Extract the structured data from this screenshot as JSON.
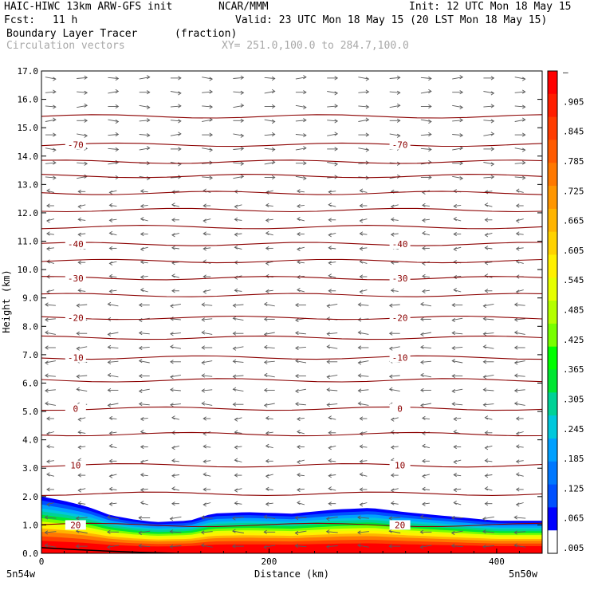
{
  "header": {
    "model": "HAIC-HIWC 13km ARW-GFS init",
    "org": "NCAR/MMM",
    "init": "Init: 12 UTC Mon 18 May 15",
    "fcst_label": "Fcst:",
    "fcst_value": "11 h",
    "valid": "Valid: 23 UTC Mon 18 May 15 (20 LST Mon 18 May 15)",
    "field": "Boundary Layer Tracer",
    "units": "(fraction)",
    "vectors": "Circulation vectors",
    "xy": "XY= 251.0,100.0 to 284.7,100.0"
  },
  "chart_data": {
    "type": "heatmap",
    "xlabel": "Distance (km)",
    "ylabel": "Height (km)",
    "xlim": [
      0,
      440
    ],
    "ylim": [
      0,
      17
    ],
    "x_ticks": [
      0,
      200,
      400
    ],
    "x_tick_labels": [
      "0",
      "200",
      "400"
    ],
    "x_end_labels": [
      "5n54w",
      "5n50w"
    ],
    "y_ticks": [
      0,
      1,
      2,
      3,
      4,
      5,
      6,
      7,
      8,
      9,
      10,
      11,
      12,
      13,
      14,
      15,
      16,
      17
    ],
    "y_tick_labels": [
      "0.0",
      "1.0",
      "2.0",
      "3.0",
      "4.0",
      "5.0",
      "6.0",
      "7.0",
      "8.0",
      "9.0",
      "10.0",
      "11.0",
      "12.0",
      "13.0",
      "14.0",
      "15.0",
      "16.0",
      "17.0"
    ],
    "colorbar_labels": [
      "–",
      ".905",
      ".845",
      ".785",
      ".725",
      ".665",
      ".605",
      ".545",
      ".485",
      ".425",
      ".365",
      ".305",
      ".245",
      ".185",
      ".125",
      ".065",
      ".005"
    ],
    "colorbar_colors": [
      "#ff0000",
      "#ff1e00",
      "#ff3c00",
      "#ff5a00",
      "#ff7800",
      "#ff9600",
      "#ffb400",
      "#ffd200",
      "#fff000",
      "#e6ff00",
      "#b4ff00",
      "#78ff00",
      "#00ff00",
      "#00e632",
      "#00d296",
      "#00c8dc",
      "#00a0ff",
      "#0078ff",
      "#0050ff",
      "#0000ff",
      "#ffffff"
    ],
    "isotherms": [
      {
        "label": "-70",
        "height_km": 14.4
      },
      {
        "label": "-40",
        "height_km": 10.9
      },
      {
        "label": "-30",
        "height_km": 9.7
      },
      {
        "label": "-20",
        "height_km": 8.3
      },
      {
        "label": "-10",
        "height_km": 6.9
      },
      {
        "label": "0",
        "height_km": 5.1
      },
      {
        "label": "10",
        "height_km": 3.1
      },
      {
        "label": "20",
        "height_km": 1.0
      }
    ],
    "unlabeled_isotherm_heights_km": [
      15.4,
      13.8,
      13.3,
      12.7,
      12.1,
      11.5,
      10.3,
      9.1,
      7.6,
      6.1,
      4.2,
      2.1
    ],
    "tracer_top_km": [
      {
        "x": 0,
        "h": 2.0
      },
      {
        "x": 20,
        "h": 1.85
      },
      {
        "x": 40,
        "h": 1.65
      },
      {
        "x": 60,
        "h": 1.35
      },
      {
        "x": 80,
        "h": 1.2
      },
      {
        "x": 100,
        "h": 1.1
      },
      {
        "x": 130,
        "h": 1.15
      },
      {
        "x": 150,
        "h": 1.4
      },
      {
        "x": 180,
        "h": 1.45
      },
      {
        "x": 220,
        "h": 1.4
      },
      {
        "x": 260,
        "h": 1.55
      },
      {
        "x": 290,
        "h": 1.6
      },
      {
        "x": 320,
        "h": 1.45
      },
      {
        "x": 360,
        "h": 1.3
      },
      {
        "x": 400,
        "h": 1.15
      },
      {
        "x": 440,
        "h": 1.15
      }
    ],
    "wind_direction": [
      {
        "range_km": [
          0,
          5
        ],
        "dir": "weak"
      },
      {
        "range_km": [
          5,
          9
        ],
        "dir": "west"
      },
      {
        "range_km": [
          9,
          13
        ],
        "dir": "west-weak"
      },
      {
        "range_km": [
          13,
          17
        ],
        "dir": "east"
      }
    ]
  }
}
